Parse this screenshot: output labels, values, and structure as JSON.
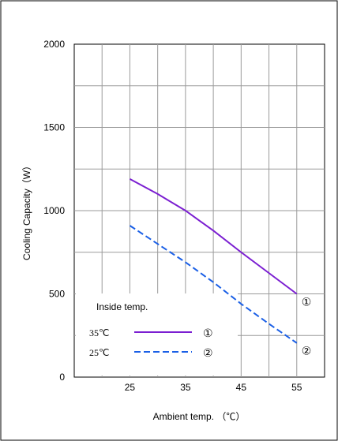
{
  "chart_data": {
    "type": "line",
    "title": "",
    "xlabel": "Ambient temp. （℃）",
    "ylabel": "Cooling Capacity（W）",
    "xlim": [
      15,
      60
    ],
    "ylim": [
      0,
      2000
    ],
    "xticks": [
      25,
      35,
      45,
      55
    ],
    "yticks": [
      0,
      500,
      1000,
      1500,
      2000
    ],
    "x_tick_labels": [
      "25",
      "35",
      "45",
      "55"
    ],
    "y_tick_labels": [
      "0",
      "500",
      "1000",
      "1500",
      "2000"
    ],
    "grid": true,
    "legend": {
      "title": "Inside temp.",
      "placement": "bottom-left",
      "entries": [
        {
          "label": "35℃",
          "marker": "①"
        },
        {
          "label": "25℃",
          "marker": "②"
        }
      ]
    },
    "series": [
      {
        "label_marker": "①",
        "color": "#7b1fd1",
        "dash": "solid",
        "x": [
          25,
          30,
          35,
          40,
          45,
          50,
          55
        ],
        "y": [
          1190,
          1100,
          1000,
          880,
          750,
          625,
          500
        ]
      },
      {
        "label_marker": "②",
        "color": "#1a5fe6",
        "dash": "dashed",
        "x": [
          25,
          30,
          35,
          40,
          45,
          50,
          55
        ],
        "y": [
          910,
          800,
          690,
          570,
          440,
          320,
          205
        ]
      }
    ]
  }
}
